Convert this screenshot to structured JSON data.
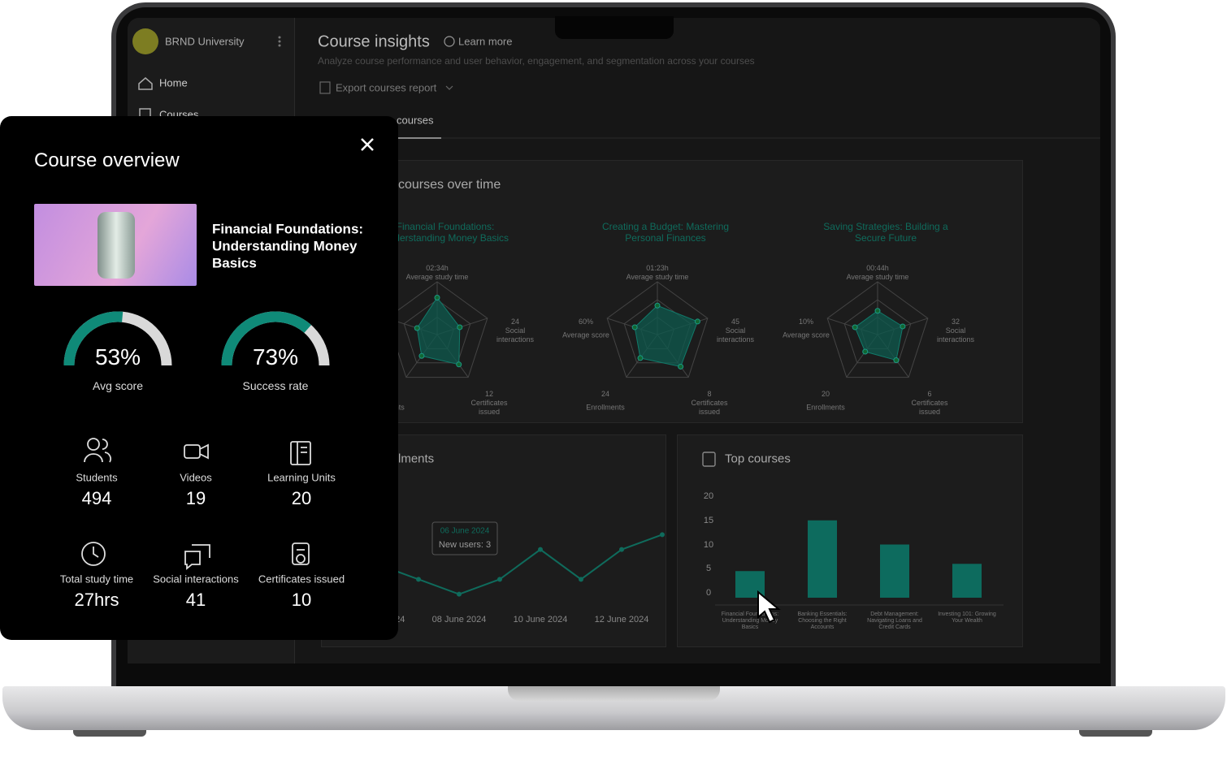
{
  "sidebar": {
    "org": "BRND University",
    "items": [
      "Home",
      "Courses"
    ]
  },
  "header": {
    "title": "Course insights",
    "learn_more": "Learn more",
    "subtitle": "Analyze course performance and user behavior, engagement, and segmentation across your courses",
    "export": "Export courses report",
    "tab": "courses"
  },
  "radar_panel": {
    "title": "courses over time",
    "radars": [
      {
        "title": "Financial Foundations: Understanding Money Basics",
        "study_time": "02:34h",
        "study_time_label": "Average study time",
        "axes": [
          {
            "value": "24",
            "label": "Social interactions"
          },
          {
            "value": "12",
            "label": "Certificates issued"
          },
          {
            "value": null,
            "label": "Enrollments"
          }
        ]
      },
      {
        "title": "Creating a Budget: Mastering Personal Finances",
        "study_time": "01:23h",
        "study_time_label": "Average study time",
        "axes": [
          {
            "value": "45",
            "label": "Social interactions"
          },
          {
            "value": "8",
            "label": "Certificates issued"
          },
          {
            "value": "24",
            "label": "Enrollments"
          },
          {
            "value": "60%",
            "label": "Average score"
          }
        ]
      },
      {
        "title": "Saving Strategies: Building a Secure Future",
        "study_time": "00:44h",
        "study_time_label": "Average study time",
        "axes": [
          {
            "value": "32",
            "label": "Social interactions"
          },
          {
            "value": "6",
            "label": "Certificates issued"
          },
          {
            "value": "20",
            "label": "Enrollments"
          },
          {
            "value": "10%",
            "label": "Average score"
          }
        ]
      }
    ]
  },
  "chart_data": [
    {
      "type": "line",
      "title": "lments",
      "categories": [
        "06 June 2024",
        null,
        "08 June 2024",
        null,
        "10 June 2024",
        null,
        "12 June 2024",
        null
      ],
      "values": [
        3,
        2,
        1,
        2,
        4,
        2,
        4,
        5
      ],
      "ylim": [
        0,
        6
      ],
      "color": "#0f6b5c",
      "tooltip": {
        "date": "06 June 2024",
        "text": "New users: 3"
      }
    },
    {
      "type": "bar",
      "title": "Top courses",
      "categories": [
        "Financial Foundations: Understanding Money Basics",
        "Banking Essentials: Choosing the Right Accounts",
        "Debt Management: Navigating Loans and Credit Cards",
        "Investing 101: Growing Your Wealth"
      ],
      "values": [
        4.5,
        15,
        10,
        6
      ],
      "ylim": [
        0,
        20
      ],
      "yticks": [
        0,
        5,
        10,
        15,
        20
      ],
      "color": "#0d6b5e"
    }
  ],
  "card": {
    "title": "Course overview",
    "course": "Financial Foundations: Understanding Money Basics",
    "gauges": [
      {
        "name": "Avg score",
        "value": 53,
        "value_label": "53%"
      },
      {
        "name": "Success rate",
        "value": 73,
        "value_label": "73%"
      }
    ],
    "stats": [
      {
        "label": "Students",
        "value": 494
      },
      {
        "label": "Videos",
        "value": 19
      },
      {
        "label": "Learning Units",
        "value": 20
      },
      {
        "label": "Total study time",
        "value": "27hrs"
      },
      {
        "label": "Social interactions",
        "value": 41
      },
      {
        "label": "Certificates issued",
        "value": 10
      }
    ]
  }
}
